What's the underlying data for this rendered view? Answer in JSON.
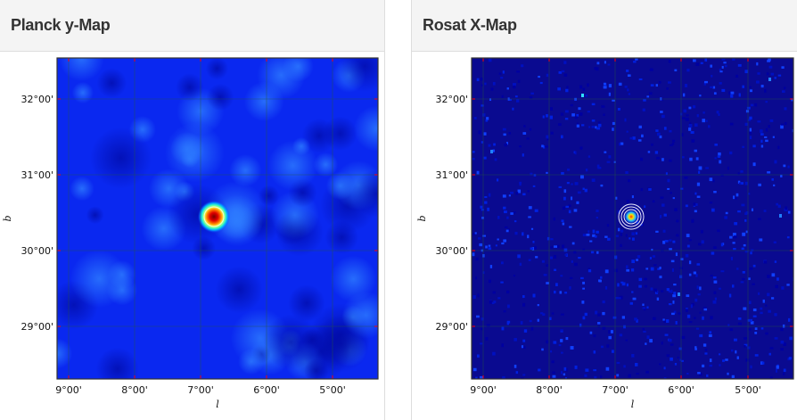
{
  "panels": [
    {
      "title": "Planck y-Map",
      "xlabel": "l",
      "ylabel": "b",
      "xticks": [
        "9°00'",
        "8°00'",
        "7°00'",
        "6°00'",
        "5°00'"
      ],
      "yticks": [
        "32°00'",
        "31°00'",
        "30°00'",
        "29°00'"
      ],
      "colormap": "jet",
      "background": "#0a1ee0"
    },
    {
      "title": "Rosat X-Map",
      "xlabel": "l",
      "ylabel": "b",
      "xticks": [
        "9°00'",
        "8°00'",
        "7°00'",
        "6°00'",
        "5°00'"
      ],
      "yticks": [
        "32°00'",
        "31°00'",
        "30°00'",
        "29°00'"
      ],
      "colormap": "jet",
      "background": "#0a0a8c",
      "contours": "white"
    }
  ]
}
